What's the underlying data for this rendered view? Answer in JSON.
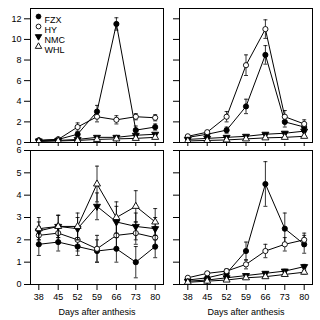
{
  "chart_data": [
    {
      "type": "line",
      "x": [
        38,
        45,
        52,
        59,
        66,
        73,
        80
      ],
      "xlim": [
        35,
        83
      ],
      "xticks": [
        38,
        45,
        52,
        59,
        66,
        73,
        80
      ],
      "ylim": [
        0,
        13
      ],
      "yticks": [
        0,
        2,
        4,
        6,
        8,
        10,
        12
      ],
      "tick_labels": "y",
      "legend": "upper left",
      "series": [
        {
          "name": "FZX",
          "color": "black",
          "marker": "circle",
          "values": [
            0.2,
            0.3,
            0.8,
            3.0,
            11.5,
            1.2,
            1.5
          ],
          "errors": [
            0.05,
            0.08,
            0.2,
            0.6,
            0.6,
            0.4,
            0.3
          ]
        },
        {
          "name": "HY",
          "color": "black",
          "marker": "open-circle",
          "values": [
            0.2,
            0.3,
            1.5,
            2.5,
            2.2,
            2.5,
            2.4
          ],
          "errors": [
            0.05,
            0.05,
            0.4,
            0.5,
            0.4,
            0.3,
            0.3
          ]
        },
        {
          "name": "NMC",
          "color": "black",
          "marker": "triangle-down",
          "values": [
            0.15,
            0.2,
            0.3,
            0.5,
            0.5,
            0.7,
            0.8
          ],
          "errors": [
            0.03,
            0.03,
            0.05,
            0.08,
            0.07,
            0.1,
            0.1
          ]
        },
        {
          "name": "WHL",
          "color": "black",
          "marker": "open-triangle-up",
          "values": [
            0.1,
            0.15,
            0.2,
            0.3,
            0.35,
            0.4,
            0.5
          ],
          "errors": [
            0.03,
            0.03,
            0.04,
            0.05,
            0.05,
            0.06,
            0.07
          ]
        }
      ]
    },
    {
      "type": "line",
      "x": [
        38,
        45,
        52,
        59,
        66,
        73,
        80
      ],
      "xlim": [
        35,
        83
      ],
      "xticks": [
        38,
        45,
        52,
        59,
        66,
        73,
        80
      ],
      "ylim": [
        0,
        13
      ],
      "yticks": [
        0,
        2,
        4,
        6,
        8,
        10,
        12
      ],
      "tick_labels": false,
      "series": [
        {
          "name": "FZX",
          "color": "black",
          "marker": "circle",
          "values": [
            0.5,
            0.8,
            1.2,
            3.5,
            8.5,
            2.0,
            1.5
          ],
          "errors": [
            0.1,
            0.15,
            0.3,
            0.7,
            0.9,
            0.5,
            0.3
          ]
        },
        {
          "name": "HY",
          "color": "black",
          "marker": "open-circle",
          "values": [
            0.6,
            1.0,
            2.5,
            7.5,
            11.0,
            2.5,
            1.8
          ],
          "errors": [
            0.1,
            0.15,
            0.5,
            1.0,
            0.9,
            0.6,
            0.4
          ]
        },
        {
          "name": "NMC",
          "color": "black",
          "marker": "triangle-down",
          "values": [
            0.3,
            0.4,
            0.5,
            0.6,
            0.8,
            0.9,
            1.1
          ],
          "errors": [
            0.05,
            0.05,
            0.07,
            0.08,
            0.1,
            0.1,
            0.12
          ]
        },
        {
          "name": "WHL",
          "color": "black",
          "marker": "open-triangle-up",
          "values": [
            0.15,
            0.2,
            0.25,
            0.35,
            0.45,
            0.5,
            0.6
          ],
          "errors": [
            0.03,
            0.03,
            0.04,
            0.05,
            0.06,
            0.07,
            0.08
          ]
        }
      ]
    },
    {
      "type": "line",
      "x": [
        38,
        45,
        52,
        59,
        66,
        73,
        80
      ],
      "xlim": [
        35,
        83
      ],
      "xticks": [
        38,
        45,
        52,
        59,
        66,
        73,
        80
      ],
      "ylim": [
        0,
        6
      ],
      "yticks": [
        0,
        1,
        2,
        3,
        4,
        5,
        6
      ],
      "xlabel": "Days after anthesis",
      "series": [
        {
          "name": "FZX",
          "color": "black",
          "marker": "circle",
          "values": [
            1.8,
            1.9,
            1.7,
            1.5,
            1.6,
            1.0,
            1.7
          ],
          "errors": [
            0.5,
            0.4,
            0.4,
            0.5,
            0.6,
            0.7,
            0.5
          ]
        },
        {
          "name": "HY",
          "color": "black",
          "marker": "open-circle",
          "values": [
            2.2,
            2.3,
            2.0,
            1.6,
            2.2,
            2.3,
            2.1
          ],
          "errors": [
            0.4,
            0.4,
            0.5,
            0.6,
            0.6,
            0.5,
            0.5
          ]
        },
        {
          "name": "NMC",
          "color": "black",
          "marker": "triangle-down",
          "values": [
            2.4,
            2.6,
            2.5,
            3.5,
            2.8,
            2.6,
            2.5
          ],
          "errors": [
            0.4,
            0.5,
            0.5,
            0.6,
            0.7,
            0.6,
            0.5
          ]
        },
        {
          "name": "WHL",
          "color": "black",
          "marker": "open-triangle-up",
          "values": [
            2.5,
            2.6,
            2.6,
            4.5,
            3.0,
            3.5,
            2.8
          ],
          "errors": [
            0.5,
            0.5,
            0.6,
            0.8,
            0.7,
            0.7,
            0.6
          ]
        }
      ]
    },
    {
      "type": "line",
      "x": [
        38,
        45,
        52,
        59,
        66,
        73,
        80
      ],
      "xlim": [
        35,
        83
      ],
      "xticks": [
        38,
        45,
        52,
        59,
        66,
        73,
        80
      ],
      "ylim": [
        0,
        6
      ],
      "yticks": [
        0,
        1,
        2,
        3,
        4,
        5,
        6
      ],
      "tick_labels": "x",
      "xlabel": "Days after anthesis",
      "series": [
        {
          "name": "FZX",
          "color": "black",
          "marker": "circle",
          "values": [
            0.2,
            0.3,
            0.5,
            1.5,
            4.5,
            2.5,
            1.8
          ],
          "errors": [
            0.05,
            0.05,
            0.1,
            0.4,
            1.0,
            0.7,
            0.4
          ]
        },
        {
          "name": "HY",
          "color": "black",
          "marker": "open-circle",
          "values": [
            0.3,
            0.5,
            0.6,
            0.9,
            1.5,
            1.8,
            2.0
          ],
          "errors": [
            0.05,
            0.08,
            0.1,
            0.2,
            0.3,
            0.3,
            0.3
          ]
        },
        {
          "name": "NMC",
          "color": "black",
          "marker": "triangle-down",
          "values": [
            0.15,
            0.2,
            0.3,
            0.4,
            0.5,
            0.6,
            0.8
          ],
          "errors": [
            0.03,
            0.03,
            0.05,
            0.06,
            0.07,
            0.08,
            0.1
          ]
        },
        {
          "name": "WHL",
          "color": "black",
          "marker": "open-triangle-up",
          "values": [
            0.1,
            0.15,
            0.2,
            0.3,
            0.35,
            0.45,
            0.55
          ],
          "errors": [
            0.03,
            0.03,
            0.04,
            0.05,
            0.06,
            0.07,
            0.08
          ]
        }
      ]
    }
  ]
}
